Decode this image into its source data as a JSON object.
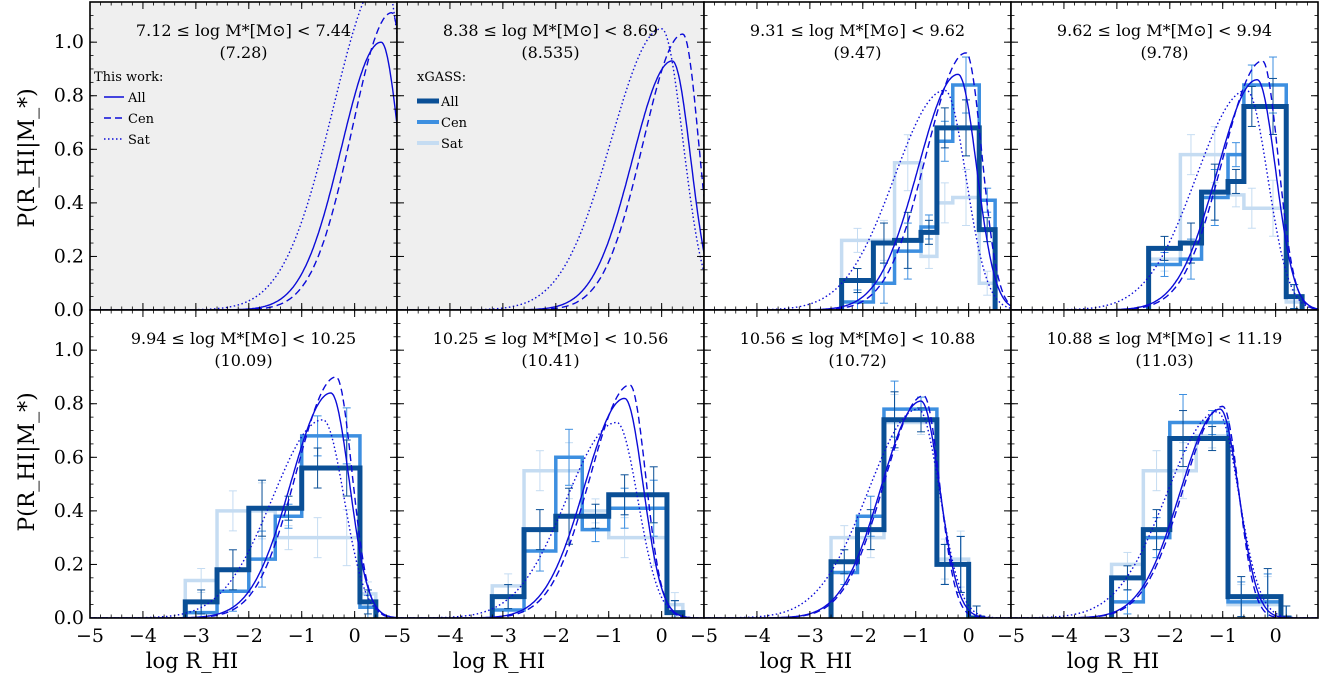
{
  "figure": {
    "ylabel": "P(R_HI|M_*)",
    "xlabel": "log R_HI"
  },
  "colors": {
    "model": "#0b0bd8",
    "xgass_all": "#0a4f96",
    "xgass_cen": "#3d8fe0",
    "xgass_sat": "#c5dcf2",
    "shade": "#efefef"
  },
  "legend_model": {
    "title": "This work:",
    "items": [
      "All",
      "Cen",
      "Sat"
    ]
  },
  "legend_xgass": {
    "title": "xGASS:",
    "items": [
      "All",
      "Cen",
      "Sat"
    ]
  },
  "chart_data": [
    {
      "type": "line",
      "title": "7.12 ≤ log M*[M⊙] < 7.44",
      "subtitle": "(7.28)",
      "xlim": [
        -5,
        0.8
      ],
      "ylim": [
        0,
        1.15
      ],
      "shaded": true,
      "model": {
        "all_peak": [
          0.5,
          1.0
        ],
        "cen_peak": [
          0.7,
          1.11
        ],
        "sat_peak": [
          0.55,
          1.25
        ]
      },
      "xgass": null
    },
    {
      "type": "line",
      "title": "8.38 ≤ log M*[M⊙] < 8.69",
      "subtitle": "(8.535)",
      "xlim": [
        -5,
        0.8
      ],
      "ylim": [
        0,
        1.15
      ],
      "shaded": true,
      "model": {
        "all_peak": [
          0.2,
          0.93
        ],
        "cen_peak": [
          0.4,
          1.03
        ],
        "sat_peak": [
          0.0,
          1.05
        ]
      },
      "xgass": null
    },
    {
      "type": "bar",
      "title": "9.31 ≤ log M*[M⊙] < 9.62",
      "subtitle": "(9.47)",
      "xlim": [
        -5,
        0.8
      ],
      "ylim": [
        0,
        1.15
      ],
      "shaded": false,
      "model": {
        "all_peak": [
          -0.2,
          0.88
        ],
        "cen_peak": [
          -0.05,
          0.96
        ],
        "sat_peak": [
          -0.45,
          0.82
        ]
      },
      "xgass": {
        "all": {
          "edges": [
            -2.4,
            -1.8,
            -1.4,
            -0.9,
            -0.6,
            -0.3,
            0.2,
            0.5
          ],
          "values": [
            0.11,
            0.25,
            0.26,
            0.29,
            0.68,
            0.68,
            0.3
          ]
        },
        "cen": {
          "edges": [
            -2.4,
            -1.8,
            -1.4,
            -0.9,
            -0.6,
            -0.3,
            0.2,
            0.5
          ],
          "values": [
            0.03,
            0.1,
            0.22,
            0.31,
            0.63,
            0.84,
            0.41
          ]
        },
        "sat": {
          "edges": [
            -2.4,
            -1.8,
            -1.4,
            -0.9,
            -0.6,
            -0.3,
            0.2,
            0.5
          ],
          "values": [
            0.26,
            0.26,
            0.55,
            0.2,
            0.4,
            0.42,
            0.1
          ]
        }
      }
    },
    {
      "type": "bar",
      "title": "9.62 ≤ log M*[M⊙] < 9.94",
      "subtitle": "(9.78)",
      "xlim": [
        -5,
        0.8
      ],
      "ylim": [
        0,
        1.15
      ],
      "shaded": false,
      "model": {
        "all_peak": [
          -0.35,
          0.86
        ],
        "cen_peak": [
          -0.25,
          0.93
        ],
        "sat_peak": [
          -0.55,
          0.82
        ]
      },
      "xgass": {
        "all": {
          "edges": [
            -2.4,
            -1.8,
            -1.4,
            -0.9,
            -0.6,
            -0.3,
            0.2,
            0.5
          ],
          "values": [
            0.23,
            0.25,
            0.44,
            0.48,
            0.76,
            0.76,
            0.05
          ]
        },
        "cen": {
          "edges": [
            -2.4,
            -1.8,
            -1.4,
            -0.9,
            -0.6,
            -0.3,
            0.2,
            0.5
          ],
          "values": [
            0.17,
            0.19,
            0.42,
            0.58,
            0.84,
            0.84,
            0.05
          ]
        },
        "sat": {
          "edges": [
            -2.4,
            -1.8,
            -1.4,
            -0.9,
            -0.6,
            -0.3,
            0.2,
            0.5
          ],
          "values": [
            0.19,
            0.58,
            0.58,
            0.43,
            0.38,
            0.38,
            0.03
          ]
        }
      }
    },
    {
      "type": "bar",
      "title": "9.94 ≤ log M*[M⊙] < 10.25",
      "subtitle": "(10.09)",
      "xlim": [
        -5,
        0.8
      ],
      "ylim": [
        0,
        1.15
      ],
      "shaded": false,
      "model": {
        "all_peak": [
          -0.45,
          0.84
        ],
        "cen_peak": [
          -0.35,
          0.9
        ],
        "sat_peak": [
          -0.6,
          0.74
        ]
      },
      "xgass": {
        "all": {
          "edges": [
            -3.2,
            -2.6,
            -2.0,
            -1.5,
            -1.0,
            -0.4,
            0.1,
            0.4
          ],
          "values": [
            0.06,
            0.18,
            0.41,
            0.41,
            0.56,
            0.56,
            0.06
          ]
        },
        "cen": {
          "edges": [
            -3.2,
            -2.6,
            -2.0,
            -1.5,
            -1.0,
            -0.4,
            0.1,
            0.4
          ],
          "values": [
            0.02,
            0.1,
            0.22,
            0.38,
            0.68,
            0.68,
            0.04
          ]
        },
        "sat": {
          "edges": [
            -3.2,
            -2.6,
            -2.0,
            -1.5,
            -1.0,
            -0.4,
            0.1,
            0.4
          ],
          "values": [
            0.14,
            0.4,
            0.4,
            0.3,
            0.3,
            0.3,
            0.09
          ]
        }
      }
    },
    {
      "type": "bar",
      "title": "10.25 ≤ log M*[M⊙] < 10.56",
      "subtitle": "(10.41)",
      "xlim": [
        -5,
        0.8
      ],
      "ylim": [
        0,
        1.15
      ],
      "shaded": false,
      "model": {
        "all_peak": [
          -0.7,
          0.82
        ],
        "cen_peak": [
          -0.6,
          0.87
        ],
        "sat_peak": [
          -0.85,
          0.73
        ]
      },
      "xgass": {
        "all": {
          "edges": [
            -3.2,
            -2.6,
            -2.0,
            -1.5,
            -1.0,
            -0.4,
            0.1,
            0.4
          ],
          "values": [
            0.08,
            0.33,
            0.38,
            0.38,
            0.46,
            0.46,
            0.02
          ]
        },
        "cen": {
          "edges": [
            -3.2,
            -2.6,
            -2.0,
            -1.5,
            -1.0,
            -0.4,
            0.1,
            0.4
          ],
          "values": [
            0.03,
            0.25,
            0.6,
            0.33,
            0.41,
            0.41,
            0.02
          ]
        },
        "sat": {
          "edges": [
            -3.2,
            -2.6,
            -2.0,
            -1.5,
            -1.0,
            -0.4,
            0.1,
            0.4
          ],
          "values": [
            0.12,
            0.55,
            0.55,
            0.4,
            0.3,
            0.3,
            0.05
          ]
        }
      }
    },
    {
      "type": "bar",
      "title": "10.56 ≤ log M*[M⊙] < 10.88",
      "subtitle": "(10.72)",
      "xlim": [
        -5,
        0.8
      ],
      "ylim": [
        0,
        1.15
      ],
      "shaded": false,
      "model": {
        "all_peak": [
          -0.9,
          0.81
        ],
        "cen_peak": [
          -0.85,
          0.83
        ],
        "sat_peak": [
          -0.95,
          0.78
        ]
      },
      "xgass": {
        "all": {
          "edges": [
            -2.6,
            -2.1,
            -1.6,
            -1.2,
            -0.6,
            -0.3,
            0.0,
            0.3
          ],
          "values": [
            0.21,
            0.33,
            0.74,
            0.74,
            0.2,
            0.2,
            0.0
          ]
        },
        "cen": {
          "edges": [
            -2.6,
            -2.1,
            -1.6,
            -1.2,
            -0.6,
            -0.3,
            0.0,
            0.3
          ],
          "values": [
            0.17,
            0.38,
            0.78,
            0.78,
            0.2,
            0.2,
            0.0
          ]
        },
        "sat": {
          "edges": [
            -2.6,
            -2.1,
            -1.6,
            -1.2,
            -0.6,
            -0.3,
            0.0,
            0.3
          ],
          "values": [
            0.3,
            0.3,
            0.73,
            0.73,
            0.22,
            0.22,
            0.0
          ]
        }
      }
    },
    {
      "type": "bar",
      "title": "10.88 ≤ log M*[M⊙] < 11.19",
      "subtitle": "(11.03)",
      "xlim": [
        -5,
        0.8
      ],
      "ylim": [
        0,
        1.15
      ],
      "shaded": false,
      "model": {
        "all_peak": [
          -1.05,
          0.78
        ],
        "cen_peak": [
          -1.0,
          0.79
        ],
        "sat_peak": [
          -1.1,
          0.77
        ]
      },
      "xgass": {
        "all": {
          "edges": [
            -3.1,
            -2.5,
            -2.0,
            -1.5,
            -0.9,
            -0.4,
            0.1,
            0.3
          ],
          "values": [
            0.15,
            0.33,
            0.67,
            0.67,
            0.08,
            0.08,
            0.0
          ]
        },
        "cen": {
          "edges": [
            -3.1,
            -2.5,
            -2.0,
            -1.5,
            -0.9,
            -0.4,
            0.1,
            0.3
          ],
          "values": [
            0.06,
            0.3,
            0.73,
            0.73,
            0.06,
            0.06,
            0.0
          ]
        },
        "sat": {
          "edges": [
            -3.1,
            -2.5,
            -2.0,
            -1.5,
            -0.9,
            -0.4,
            0.1,
            0.3
          ],
          "values": [
            0.2,
            0.55,
            0.55,
            0.68,
            0.05,
            0.05,
            0.0
          ]
        }
      }
    }
  ],
  "axis": {
    "xticks": [
      -5,
      -4,
      -3,
      -2,
      -1,
      0
    ],
    "yticks": [
      0.0,
      0.2,
      0.4,
      0.6,
      0.8,
      1.0
    ],
    "xtick_labels": [
      "−5",
      "−4",
      "−3",
      "−2",
      "−1",
      "0"
    ],
    "ytick_labels": [
      "0.0",
      "0.2",
      "0.4",
      "0.6",
      "0.8",
      "1.0"
    ]
  }
}
